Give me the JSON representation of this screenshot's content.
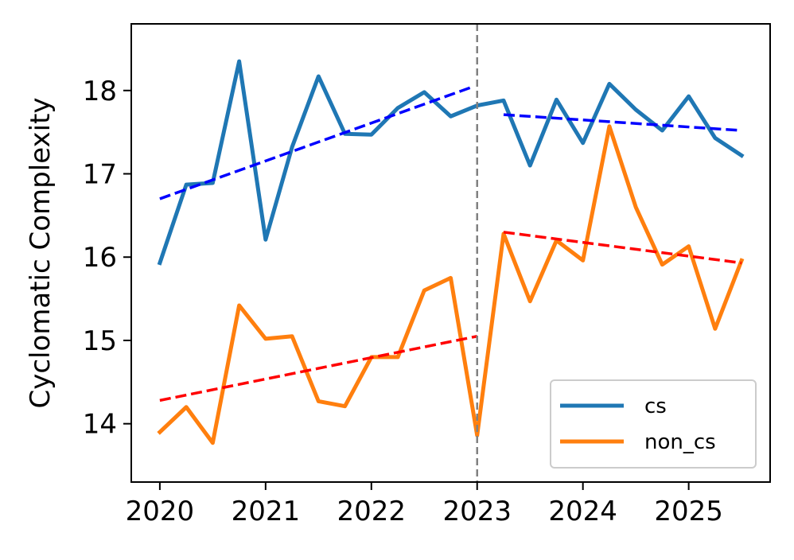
{
  "chart_data": {
    "type": "line",
    "title": "",
    "xlabel": "",
    "ylabel": "Cyclomatic Complexity",
    "xlim": [
      2019.73,
      2025.77
    ],
    "ylim": [
      13.3,
      18.8
    ],
    "xticks": [
      2020,
      2021,
      2022,
      2023,
      2024,
      2025
    ],
    "xtick_labels": [
      "2020",
      "2021",
      "2022",
      "2023",
      "2024",
      "2025"
    ],
    "yticks": [
      14,
      15,
      16,
      17,
      18
    ],
    "ytick_labels": [
      "14",
      "15",
      "16",
      "17",
      "18"
    ],
    "grid": false,
    "legend_position": "lower-right",
    "x": [
      2020.0,
      2020.25,
      2020.5,
      2020.75,
      2021.0,
      2021.25,
      2021.5,
      2021.75,
      2022.0,
      2022.25,
      2022.5,
      2022.75,
      2023.0,
      2023.25,
      2023.5,
      2023.75,
      2024.0,
      2024.25,
      2024.5,
      2024.75,
      2025.0,
      2025.25,
      2025.5
    ],
    "series": [
      {
        "name": "cs",
        "color": "#1f77b4",
        "values": [
          15.93,
          16.87,
          16.89,
          18.35,
          16.21,
          17.32,
          18.17,
          17.48,
          17.47,
          17.79,
          17.98,
          17.69,
          17.82,
          17.88,
          17.1,
          17.89,
          17.37,
          18.08,
          17.77,
          17.52,
          17.93,
          17.43,
          17.22
        ]
      },
      {
        "name": "non_cs",
        "color": "#ff7f0e",
        "values": [
          13.9,
          14.2,
          13.77,
          15.42,
          15.02,
          15.05,
          14.27,
          14.21,
          14.8,
          14.8,
          15.6,
          15.75,
          13.86,
          16.28,
          15.47,
          16.2,
          15.96,
          17.57,
          16.6,
          15.91,
          16.13,
          15.14,
          15.96
        ]
      }
    ],
    "trend_lines": [
      {
        "name": "cs-trend-pre",
        "color": "#0000ff",
        "x": [
          2020.0,
          2022.97
        ],
        "y": [
          16.7,
          18.05
        ]
      },
      {
        "name": "cs-trend-post",
        "color": "#0000ff",
        "x": [
          2023.25,
          2025.5
        ],
        "y": [
          17.71,
          17.52
        ]
      },
      {
        "name": "non_cs-trend-pre",
        "color": "#ff0000",
        "x": [
          2020.0,
          2023.0
        ],
        "y": [
          14.28,
          15.05
        ]
      },
      {
        "name": "non_cs-trend-post",
        "color": "#ff0000",
        "x": [
          2023.25,
          2025.5
        ],
        "y": [
          16.3,
          15.93
        ]
      }
    ],
    "vertical_line": {
      "x": 2023.0,
      "color": "#808080",
      "style": "dashed"
    }
  }
}
